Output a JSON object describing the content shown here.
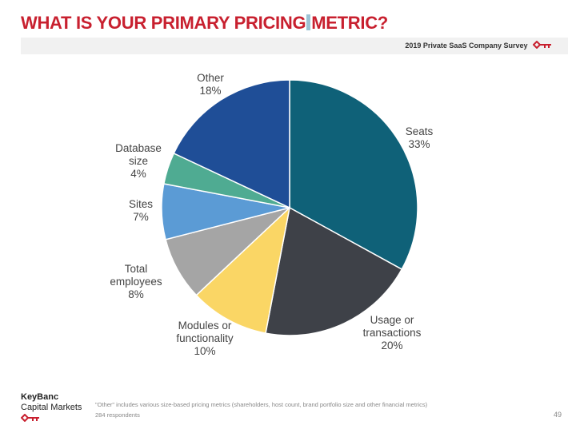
{
  "header": {
    "title_part1": "WHAT IS YOUR PRIMARY PRICING",
    "title_part2": "METRIC?",
    "survey": "2019 Private SaaS Company Survey"
  },
  "colors": {
    "brand": "#c8202f"
  },
  "chart_data": {
    "type": "pie",
    "start": "12 o'clock, clockwise",
    "slices": [
      {
        "label": [
          "Seats"
        ],
        "pct": "33%",
        "value": 33,
        "color": "#0f6178"
      },
      {
        "label": [
          "Usage or",
          "transactions"
        ],
        "pct": "20%",
        "value": 20,
        "color": "#3e4148"
      },
      {
        "label": [
          "Modules or",
          "functionality"
        ],
        "pct": "10%",
        "value": 10,
        "color": "#fad665"
      },
      {
        "label": [
          "Total",
          "employees"
        ],
        "pct": "8%",
        "value": 8,
        "color": "#a5a5a5"
      },
      {
        "label": [
          "Sites"
        ],
        "pct": "7%",
        "value": 7,
        "color": "#5b9bd5"
      },
      {
        "label": [
          "Database",
          "size"
        ],
        "pct": "4%",
        "value": 4,
        "color": "#4fab92"
      },
      {
        "label": [
          "Other"
        ],
        "pct": "18%",
        "value": 18,
        "color": "#1f4e97"
      }
    ]
  },
  "footer": {
    "logo_line1": "KeyBanc",
    "logo_line2": "Capital Markets",
    "note": "\"Other\" includes various size-based pricing metrics (shareholders, host count, brand portfolio size and other financial metrics)",
    "respondents": "284 respondents",
    "page": "49"
  }
}
